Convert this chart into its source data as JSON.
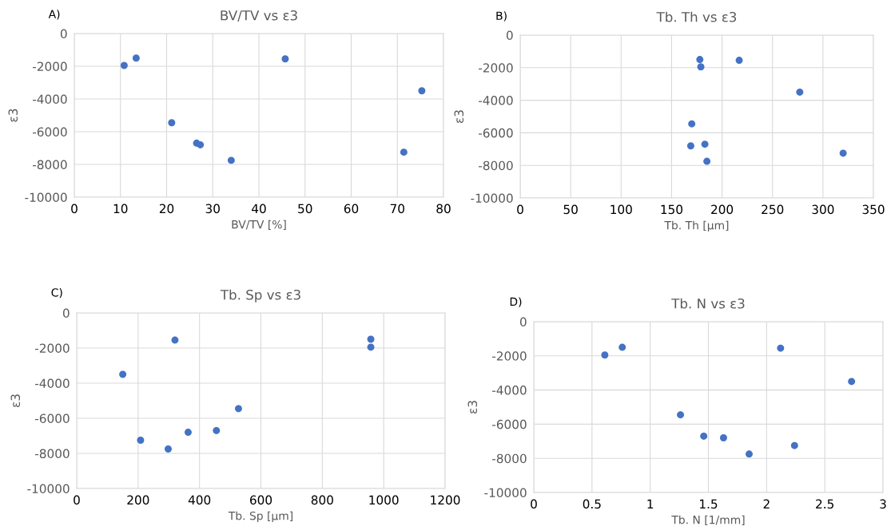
{
  "chart_data": [
    {
      "type": "scatter",
      "title": "BV/TV vs ε3",
      "xlabel": "BV/TV [%]",
      "ylabel": "ε3",
      "annotations": [
        "A)"
      ],
      "xlim": [
        0,
        80
      ],
      "xticks": [
        0,
        10,
        20,
        30,
        40,
        50,
        60,
        70,
        80
      ],
      "ylim": [
        -10000,
        0
      ],
      "yticks": [
        -10000,
        -8000,
        -6000,
        -4000,
        -2000,
        0
      ],
      "grid": true,
      "marker": "circle",
      "series": [
        {
          "color": "#4472c4",
          "x": [
            10.8,
            13.4,
            21.1,
            26.5,
            27.3,
            34,
            45.7,
            71.4,
            75.3
          ],
          "values": [
            -1950,
            -1500,
            -5450,
            -6700,
            -6800,
            -7750,
            -1550,
            -7250,
            -3500
          ]
        }
      ]
    },
    {
      "type": "scatter",
      "title": "Tb. Th vs ε3",
      "xlabel": "Tb. Th [µm]",
      "ylabel": "ε3",
      "annotations": [
        "B)"
      ],
      "xlim": [
        0,
        350
      ],
      "xticks": [
        0,
        50,
        100,
        150,
        200,
        250,
        300,
        350
      ],
      "ylim": [
        -10000,
        0
      ],
      "yticks": [
        -10000,
        -8000,
        -6000,
        -4000,
        -2000,
        0
      ],
      "grid": true,
      "marker": "circle",
      "series": [
        {
          "color": "#4472c4",
          "x": [
            178,
            179,
            217,
            277,
            170,
            169,
            183,
            185,
            320
          ],
          "values": [
            -1500,
            -1950,
            -1550,
            -3500,
            -5450,
            -6800,
            -6700,
            -7750,
            -7250
          ]
        }
      ]
    },
    {
      "type": "scatter",
      "title": "Tb. Sp vs ε3",
      "xlabel": "Tb. Sp [µm]",
      "ylabel": "ε3",
      "annotations": [
        "C)"
      ],
      "xlim": [
        0,
        1200
      ],
      "xticks": [
        0,
        200,
        400,
        600,
        800,
        1000,
        1200
      ],
      "ylim": [
        -10000,
        0
      ],
      "yticks": [
        -10000,
        -8000,
        -6000,
        -4000,
        -2000,
        0
      ],
      "grid": true,
      "marker": "circle",
      "series": [
        {
          "color": "#4472c4",
          "x": [
            320,
            958,
            958,
            150,
            527,
            455,
            363,
            208,
            298
          ],
          "values": [
            -1550,
            -1500,
            -1950,
            -3500,
            -5450,
            -6700,
            -6800,
            -7250,
            -7750
          ]
        }
      ]
    },
    {
      "type": "scatter",
      "title": "Tb. N vs ε3",
      "xlabel": "Tb. N [1/mm]",
      "ylabel": "ε3",
      "annotations": [
        "D)"
      ],
      "xlim": [
        0,
        3
      ],
      "xticks": [
        0,
        0.5,
        1,
        1.5,
        2,
        2.5,
        3
      ],
      "ylim": [
        -10000,
        0
      ],
      "yticks": [
        -10000,
        -8000,
        -6000,
        -4000,
        -2000,
        0
      ],
      "grid": true,
      "marker": "circle",
      "series": [
        {
          "color": "#4472c4",
          "x": [
            0.61,
            0.76,
            1.26,
            1.46,
            1.63,
            1.85,
            2.12,
            2.24,
            2.73
          ],
          "values": [
            -1950,
            -1500,
            -5450,
            -6700,
            -6800,
            -7750,
            -1550,
            -7250,
            -3500
          ]
        }
      ]
    }
  ]
}
